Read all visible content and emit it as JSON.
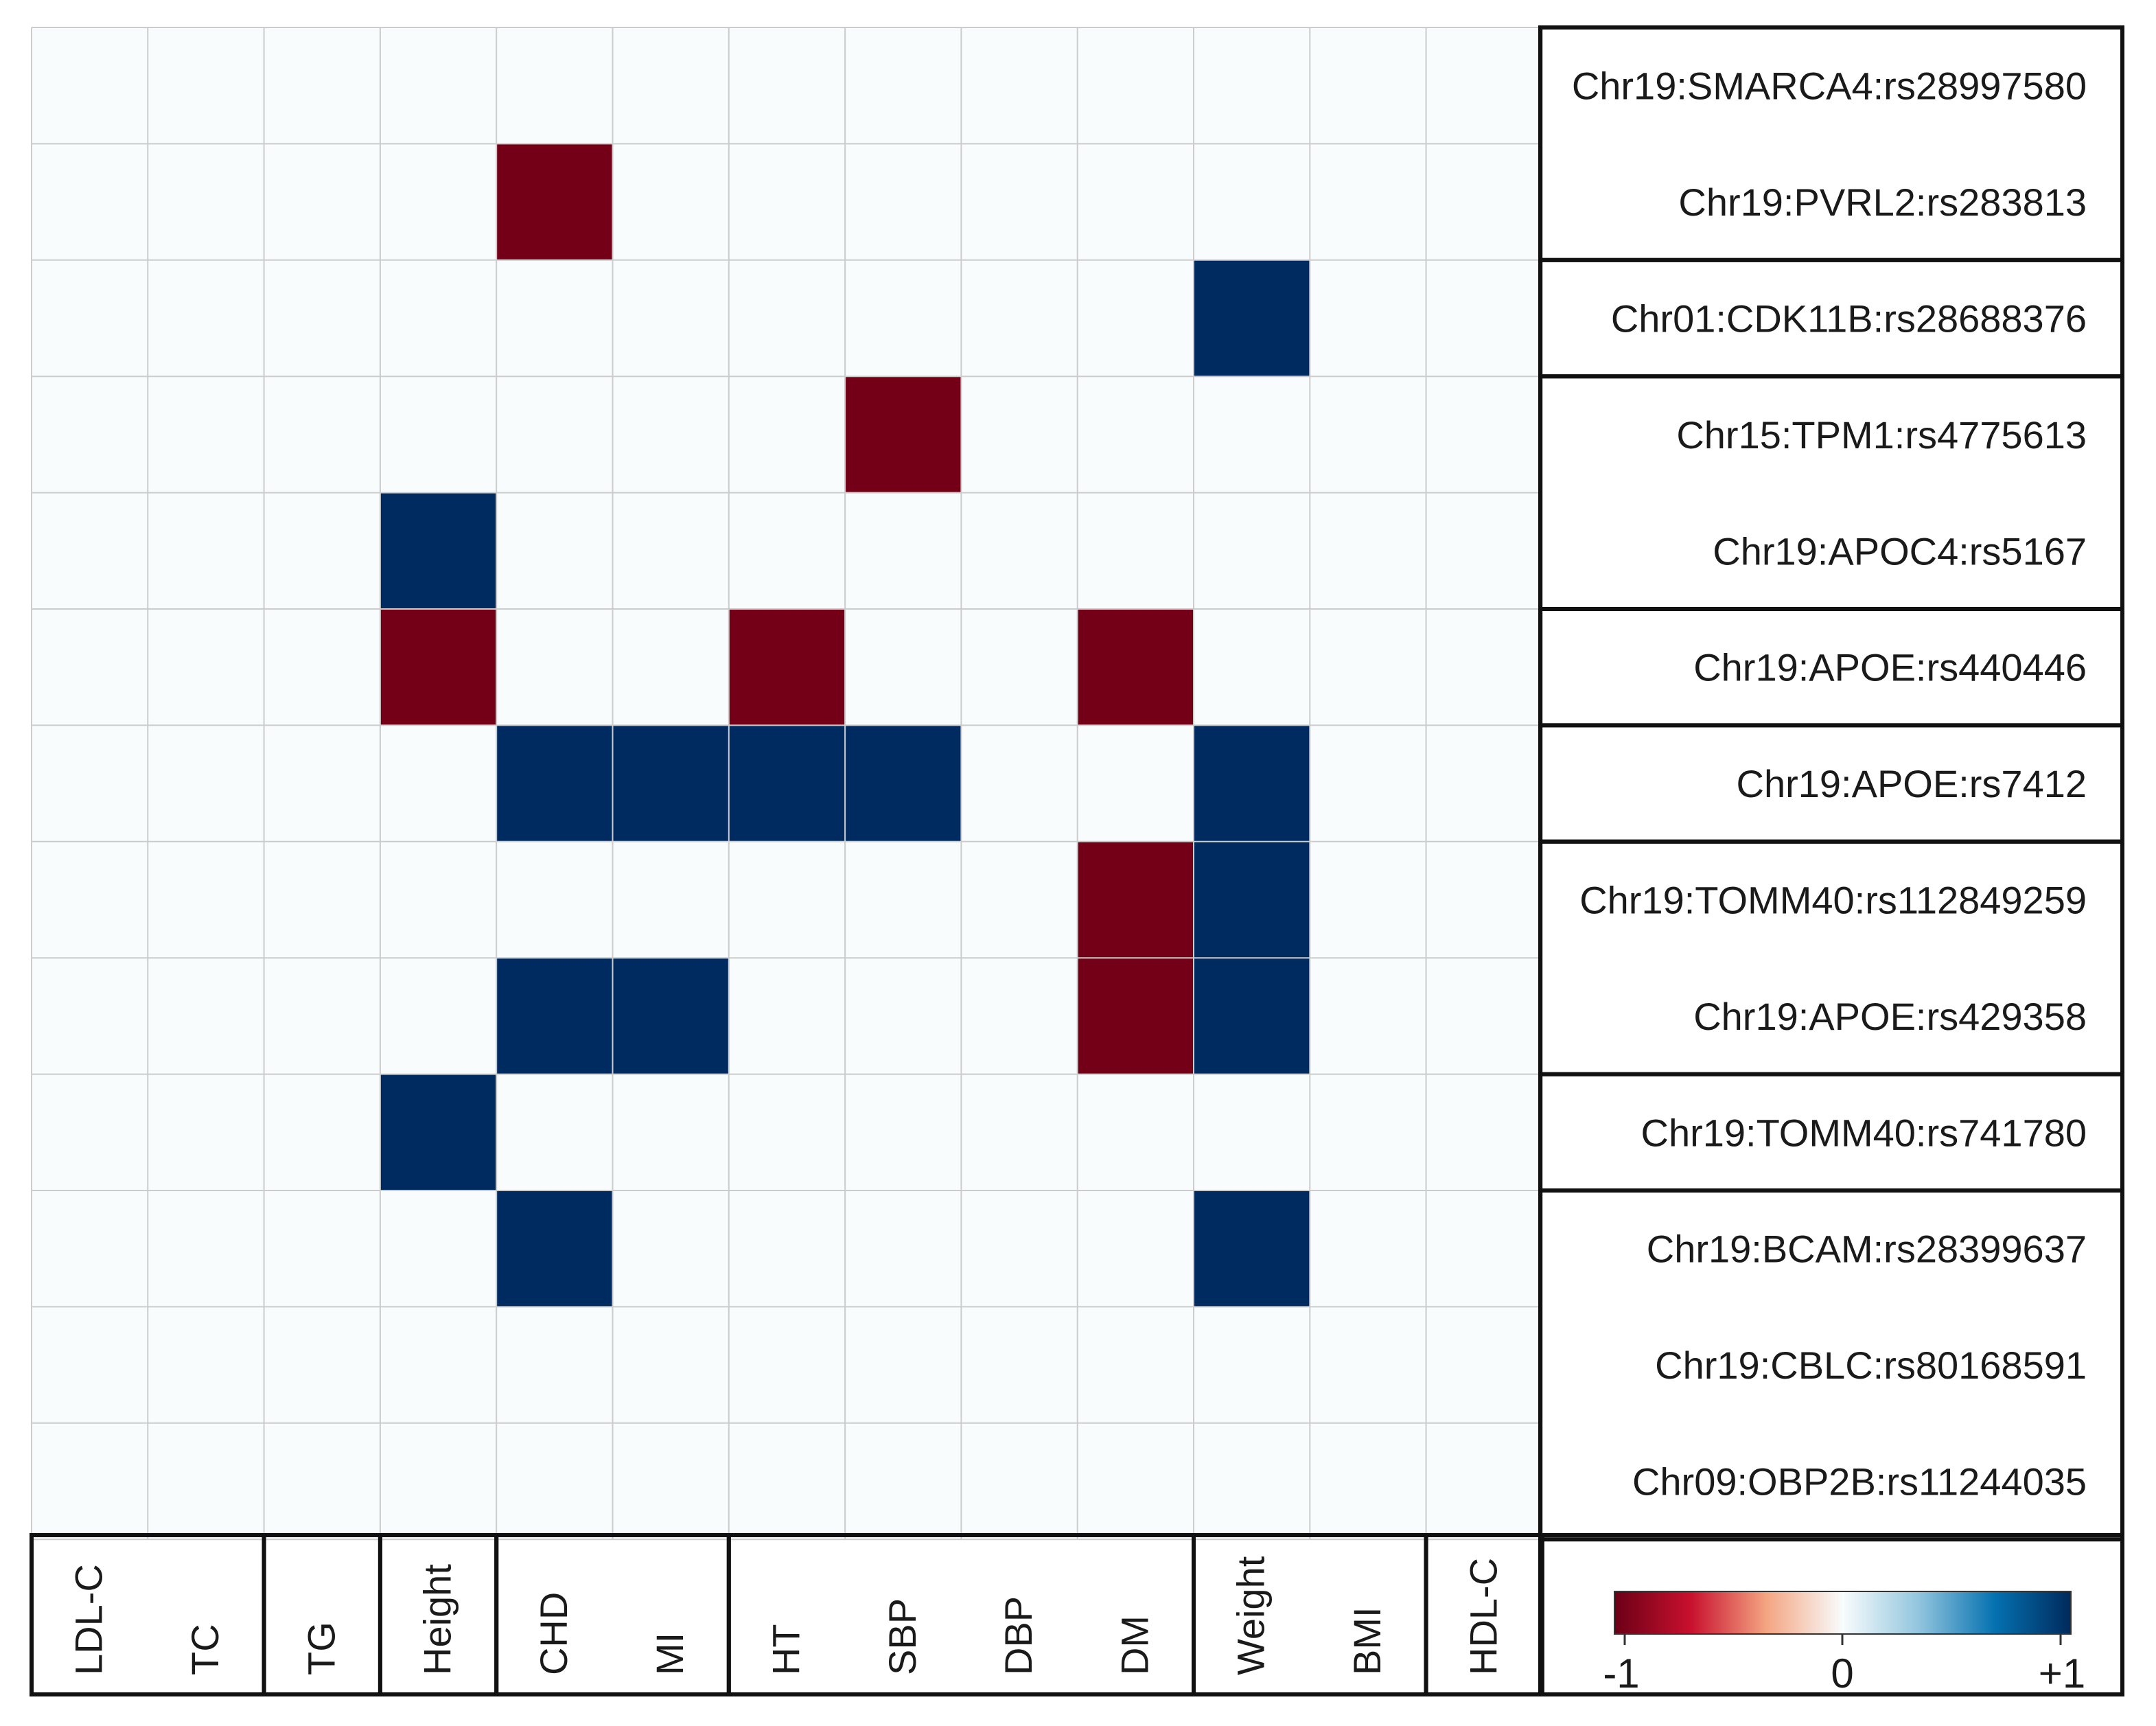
{
  "chart_data": {
    "type": "heatmap",
    "title": "",
    "columns": [
      "LDL-C",
      "TC",
      "TG",
      "Height",
      "CHD",
      "MI",
      "HT",
      "SBP",
      "DBP",
      "DM",
      "Weight",
      "BMI",
      "HDL-C"
    ],
    "column_groups": [
      [
        "LDL-C",
        "TC"
      ],
      [
        "TG"
      ],
      [
        "Height"
      ],
      [
        "CHD",
        "MI"
      ],
      [
        "HT",
        "SBP",
        "DBP",
        "DM"
      ],
      [
        "Weight",
        "BMI"
      ],
      [
        "HDL-C"
      ]
    ],
    "rows": [
      "Chr19:SMARCA4:rs28997580",
      "Chr19:PVRL2:rs283813",
      "Chr01:CDK11B:rs28688376",
      "Chr15:TPM1:rs4775613",
      "Chr19:APOC4:rs5167",
      "Chr19:APOE:rs440446",
      "Chr19:APOE:rs7412",
      "Chr19:TOMM40:rs112849259",
      "Chr19:APOE:rs429358",
      "Chr19:TOMM40:rs741780",
      "Chr19:BCAM:rs28399637",
      "Chr19:CBLC:rs80168591",
      "Chr09:OBP2B:rs11244035"
    ],
    "row_groups": [
      [
        "Chr19:SMARCA4:rs28997580",
        "Chr19:PVRL2:rs283813"
      ],
      [
        "Chr01:CDK11B:rs28688376"
      ],
      [
        "Chr15:TPM1:rs4775613",
        "Chr19:APOC4:rs5167"
      ],
      [
        "Chr19:APOE:rs440446"
      ],
      [
        "Chr19:APOE:rs7412"
      ],
      [
        "Chr19:TOMM40:rs112849259",
        "Chr19:APOE:rs429358"
      ],
      [
        "Chr19:TOMM40:rs741780"
      ],
      [
        "Chr19:BCAM:rs28399637",
        "Chr19:CBLC:rs80168591",
        "Chr09:OBP2B:rs11244035"
      ]
    ],
    "values": [
      [
        0,
        0,
        0,
        0,
        0,
        0,
        0,
        0,
        0,
        0,
        0,
        0,
        0
      ],
      [
        0,
        0,
        0,
        0,
        -1,
        0,
        0,
        0,
        0,
        0,
        0,
        0,
        0
      ],
      [
        0,
        0,
        0,
        0,
        0,
        0,
        0,
        0,
        0,
        0,
        1,
        0,
        0
      ],
      [
        0,
        0,
        0,
        0,
        0,
        0,
        0,
        -1,
        0,
        0,
        0,
        0,
        0
      ],
      [
        0,
        0,
        0,
        1,
        0,
        0,
        0,
        0,
        0,
        0,
        0,
        0,
        0
      ],
      [
        0,
        0,
        0,
        -1,
        0,
        0,
        -1,
        0,
        0,
        -1,
        0,
        0,
        0
      ],
      [
        0,
        0,
        0,
        0,
        1,
        1,
        1,
        1,
        0,
        0,
        1,
        0,
        0
      ],
      [
        0,
        0,
        0,
        0,
        0,
        0,
        0,
        0,
        0,
        -1,
        1,
        0,
        0
      ],
      [
        0,
        0,
        0,
        0,
        1,
        1,
        0,
        0,
        0,
        -1,
        1,
        0,
        0
      ],
      [
        0,
        0,
        0,
        1,
        0,
        0,
        0,
        0,
        0,
        0,
        0,
        0,
        0
      ],
      [
        0,
        0,
        0,
        0,
        1,
        0,
        0,
        0,
        0,
        0,
        1,
        0,
        0
      ],
      [
        0,
        0,
        0,
        0,
        0,
        0,
        0,
        0,
        0,
        0,
        0,
        0,
        0
      ],
      [
        0,
        0,
        0,
        0,
        0,
        0,
        0,
        0,
        0,
        0,
        0,
        0,
        0
      ]
    ],
    "color_scale": {
      "min": -1,
      "max": 1,
      "min_label": "-1",
      "mid_label": "0",
      "max_label": "+1",
      "colors": [
        "#6b0016",
        "#c8102e",
        "#f4a582",
        "#f8fcfd",
        "#92c5de",
        "#0571b0",
        "#002a5c"
      ]
    },
    "cell_colors": {
      "negative": "#730017",
      "zero": "#f8fcfd",
      "positive": "#002b60"
    },
    "grid": true
  }
}
